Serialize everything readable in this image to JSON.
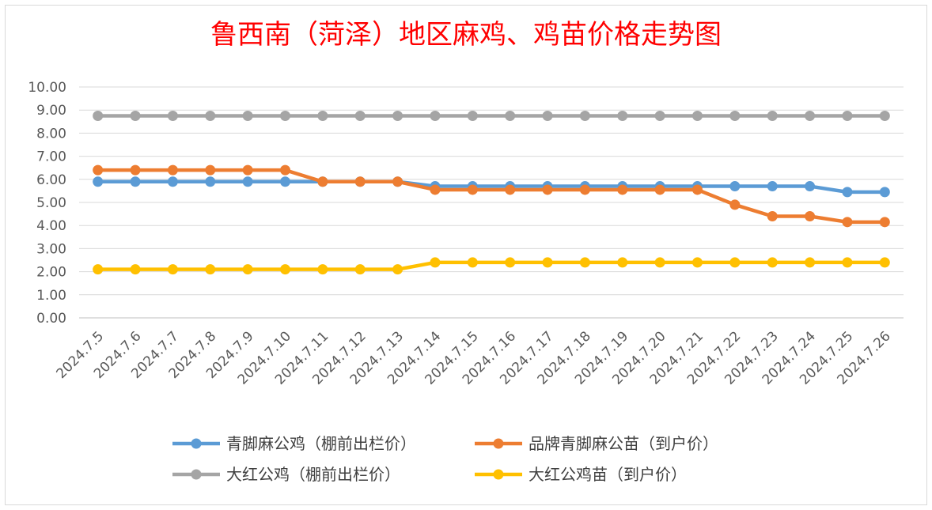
{
  "chart_data": {
    "type": "line",
    "title": "鲁西南（菏泽）地区麻鸡、鸡苗价格走势图",
    "xlabel": "",
    "ylabel": "",
    "ylim": [
      0,
      10
    ],
    "yticks": [
      "0.00",
      "1.00",
      "2.00",
      "3.00",
      "4.00",
      "5.00",
      "6.00",
      "7.00",
      "8.00",
      "9.00",
      "10.00"
    ],
    "grid": true,
    "legend_position": "bottom",
    "categories": [
      "2024.7.5",
      "2024.7.6",
      "2024.7.7",
      "2024.7.8",
      "2024.7.9",
      "2024.7.10",
      "2024.7.11",
      "2024.7.12",
      "2024.7.13",
      "2024.7.14",
      "2024.7.15",
      "2024.7.16",
      "2024.7.17",
      "2024.7.18",
      "2024.7.19",
      "2024.7.20",
      "2024.7.21",
      "2024.7.22",
      "2024.7.23",
      "2024.7.24",
      "2024.7.25",
      "2024.7.26"
    ],
    "series": [
      {
        "name": "青脚麻公鸡（棚前出栏价）",
        "color": "#5b9bd5",
        "values": [
          5.9,
          5.9,
          5.9,
          5.9,
          5.9,
          5.9,
          5.9,
          5.9,
          5.9,
          5.7,
          5.7,
          5.7,
          5.7,
          5.7,
          5.7,
          5.7,
          5.7,
          5.7,
          5.7,
          5.7,
          5.45,
          5.45
        ]
      },
      {
        "name": "品牌青脚麻公苗（到户价）",
        "color": "#ed7d31",
        "values": [
          6.4,
          6.4,
          6.4,
          6.4,
          6.4,
          6.4,
          5.9,
          5.9,
          5.9,
          5.55,
          5.55,
          5.55,
          5.55,
          5.55,
          5.55,
          5.55,
          5.55,
          4.9,
          4.4,
          4.4,
          4.15,
          4.15
        ]
      },
      {
        "name": "大红公鸡（棚前出栏价）",
        "color": "#a5a5a5",
        "values": [
          8.75,
          8.75,
          8.75,
          8.75,
          8.75,
          8.75,
          8.75,
          8.75,
          8.75,
          8.75,
          8.75,
          8.75,
          8.75,
          8.75,
          8.75,
          8.75,
          8.75,
          8.75,
          8.75,
          8.75,
          8.75,
          8.75
        ]
      },
      {
        "name": "大红公鸡苗（到户价）",
        "color": "#ffc000",
        "values": [
          2.1,
          2.1,
          2.1,
          2.1,
          2.1,
          2.1,
          2.1,
          2.1,
          2.1,
          2.4,
          2.4,
          2.4,
          2.4,
          2.4,
          2.4,
          2.4,
          2.4,
          2.4,
          2.4,
          2.4,
          2.4,
          2.4
        ]
      }
    ]
  }
}
